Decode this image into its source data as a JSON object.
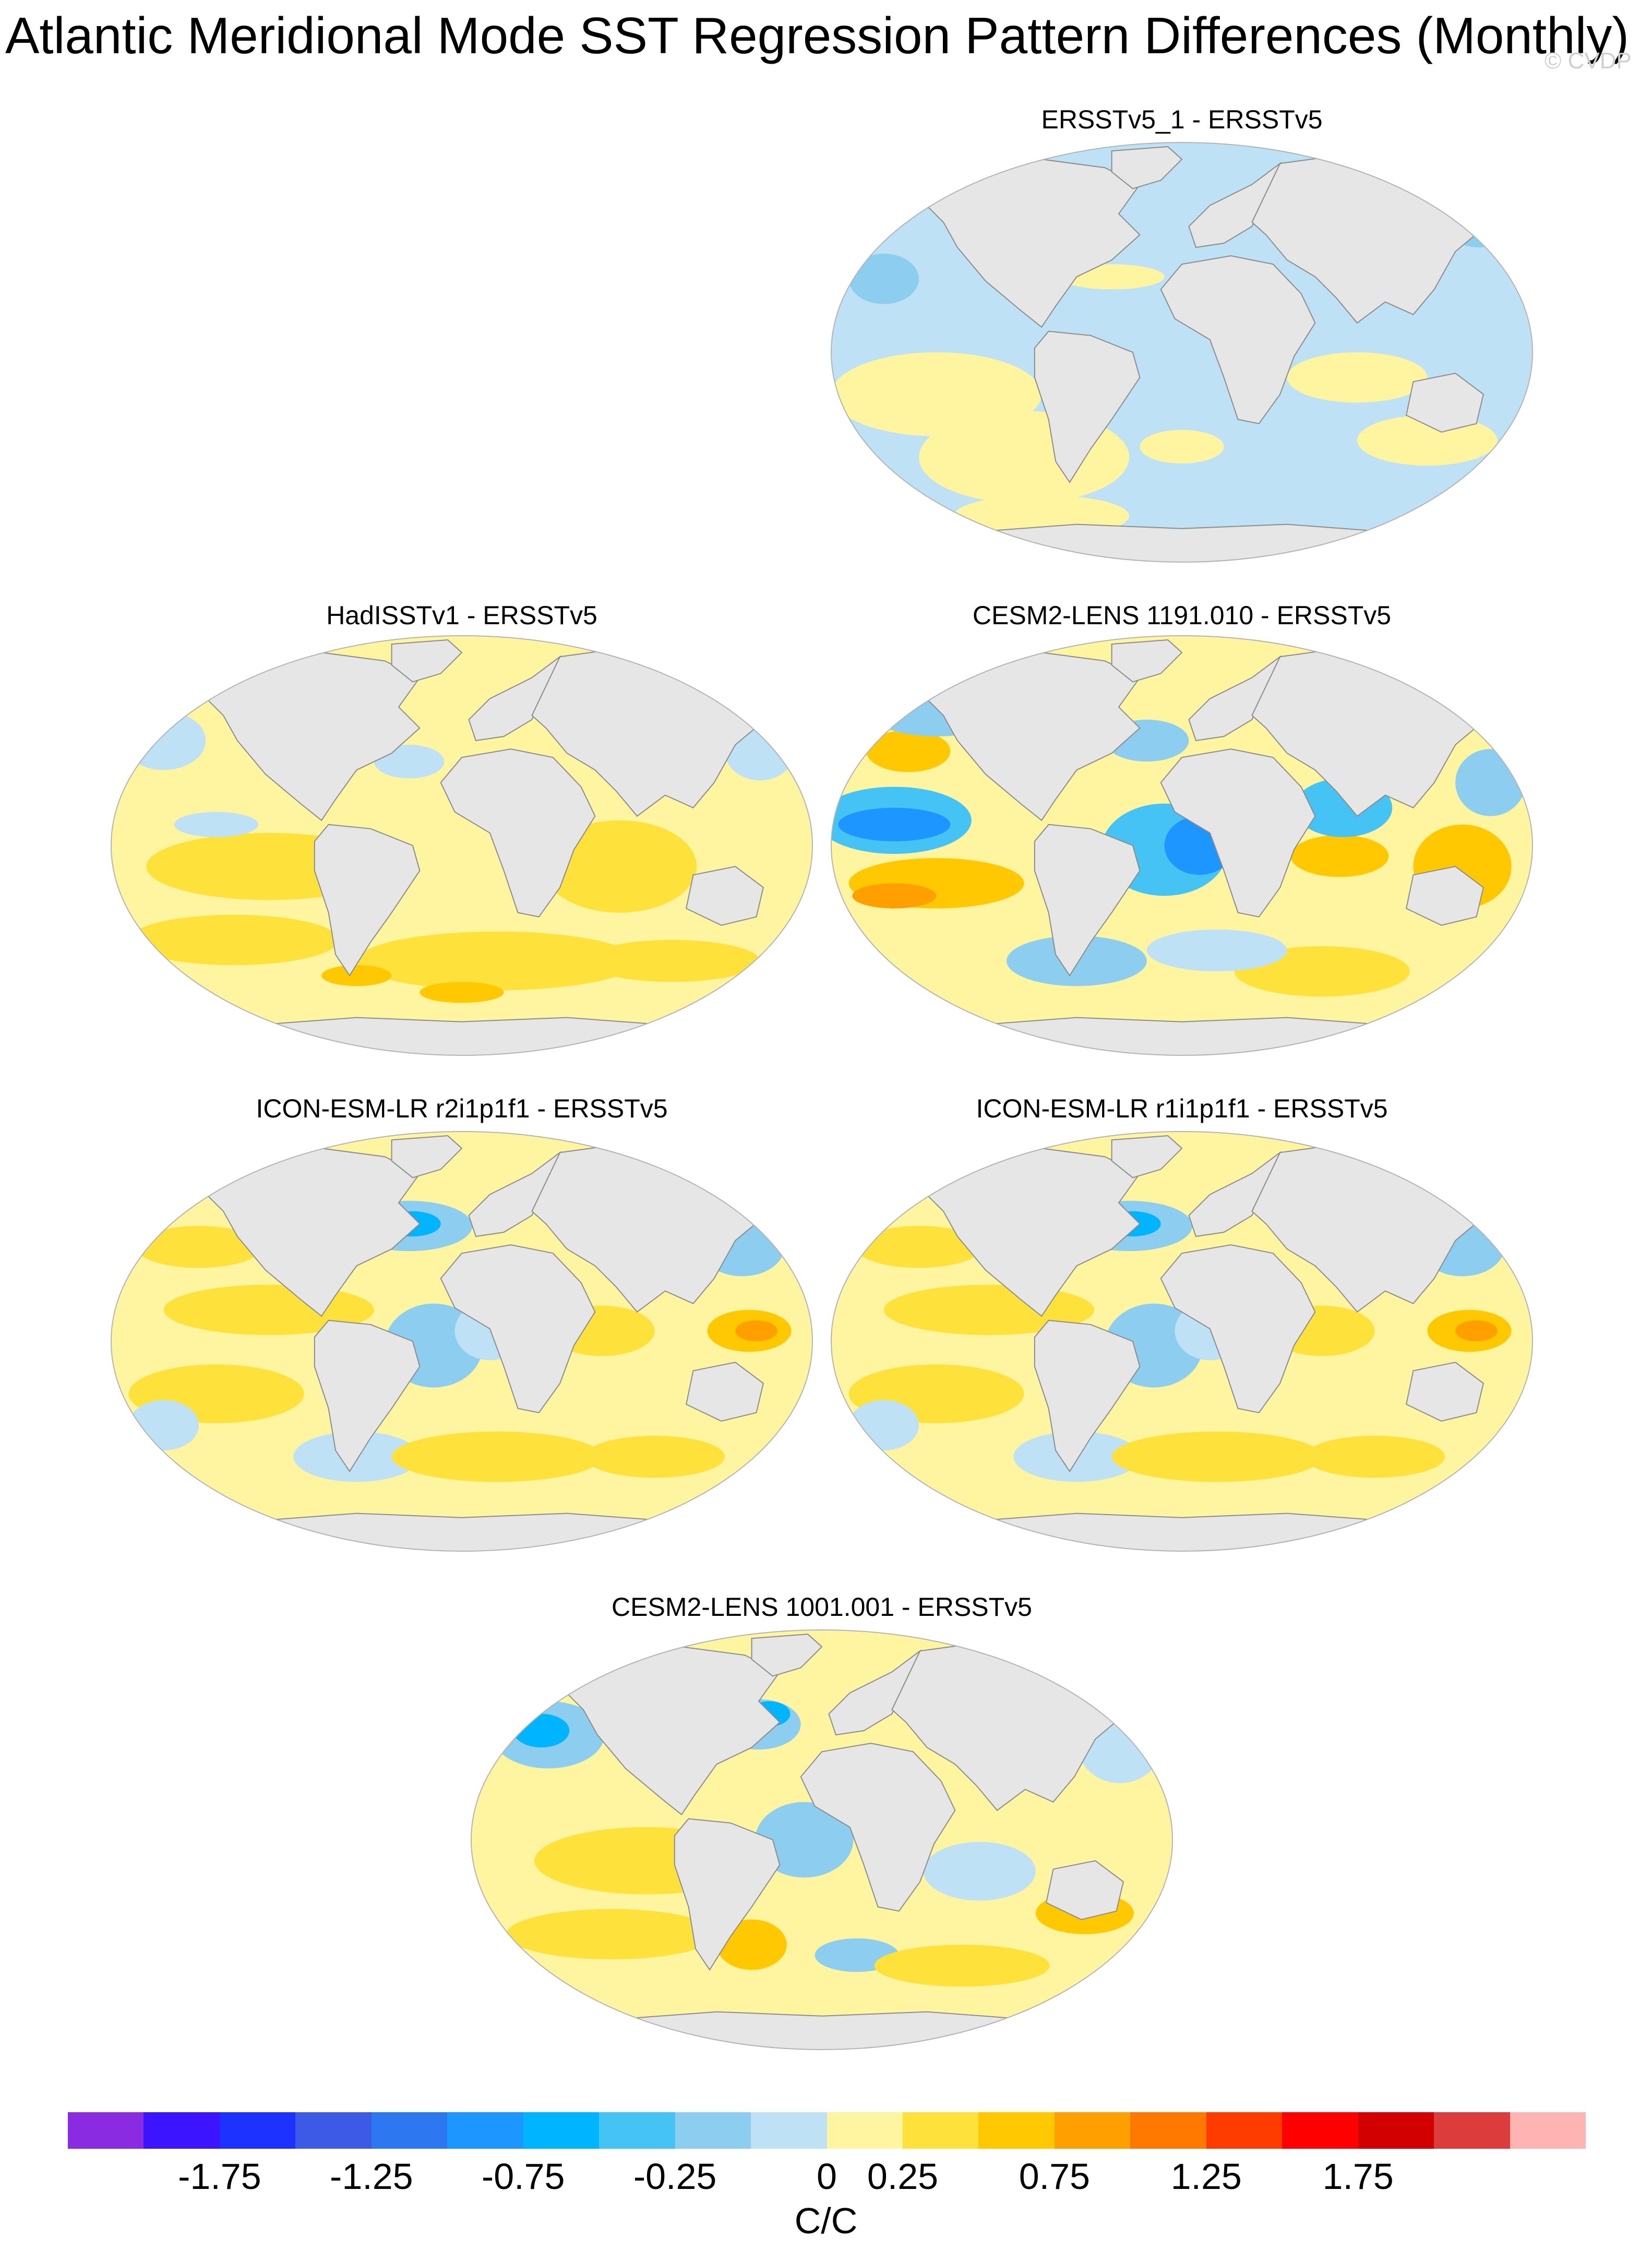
{
  "title": "Atlantic Meridional Mode SST Regression Pattern Differences (Monthly)",
  "watermark": "© CVDP",
  "panels": [
    {
      "title": "ERSSTv5_1 - ERSSTv5",
      "style": "weak"
    },
    {
      "title": "HadISSTv1 - ERSSTv5",
      "style": "warm"
    },
    {
      "title": "CESM2-LENS 1191.010 - ERSSTv5",
      "style": "cesm1191"
    },
    {
      "title": "ICON-ESM-LR r2i1p1f1 - ERSSTv5",
      "style": "icon"
    },
    {
      "title": "ICON-ESM-LR r1i1p1f1 - ERSSTv5",
      "style": "icon"
    },
    {
      "title": "CESM2-LENS 1001.001 - ERSSTv5",
      "style": "cesm1001"
    }
  ],
  "colorbar": {
    "colors": [
      "#8a2be2",
      "#3c14ff",
      "#1e32ff",
      "#3c5ae6",
      "#2d78f0",
      "#1e96ff",
      "#00b4ff",
      "#46c3f5",
      "#8ccdf0",
      "#bee1f5",
      "#fff5a0",
      "#ffe13c",
      "#ffc800",
      "#ffa000",
      "#ff7800",
      "#ff3c00",
      "#ff0000",
      "#d20000",
      "#dc3c3c",
      "#ffb4b4"
    ],
    "tick_labels": [
      "-1.75",
      "-1.25",
      "-0.75",
      "-0.25",
      "0",
      "0.25",
      "0.75",
      "1.25",
      "1.75"
    ],
    "units": "C/C"
  }
}
